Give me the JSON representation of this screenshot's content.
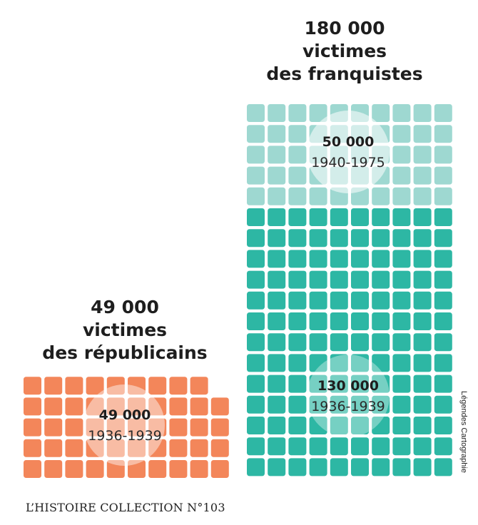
{
  "chart_data": {
    "type": "area",
    "series": [
      {
        "name": "victimes des franquistes",
        "total_label": "180 000",
        "title_lines": [
          "180 000",
          "victimes",
          "des franquistes"
        ],
        "segments": [
          {
            "value": 50000,
            "label": "50 000",
            "period": "1940-1975",
            "color": "#9ed8d1"
          },
          {
            "value": 130000,
            "label": "130 000",
            "period": "1936-1939",
            "color": "#2db7a4"
          }
        ]
      },
      {
        "name": "victimes des républicains",
        "total_label": "49 000",
        "title_lines": [
          "49 000",
          "victimes",
          "des républicains"
        ],
        "segments": [
          {
            "value": 49000,
            "label": "49 000",
            "period": "1936-1939",
            "color": "#f3865a"
          }
        ]
      }
    ]
  },
  "footer": "L’HISTOIRE COLLECTION  N°103",
  "credit": "Légendes Cartographie"
}
